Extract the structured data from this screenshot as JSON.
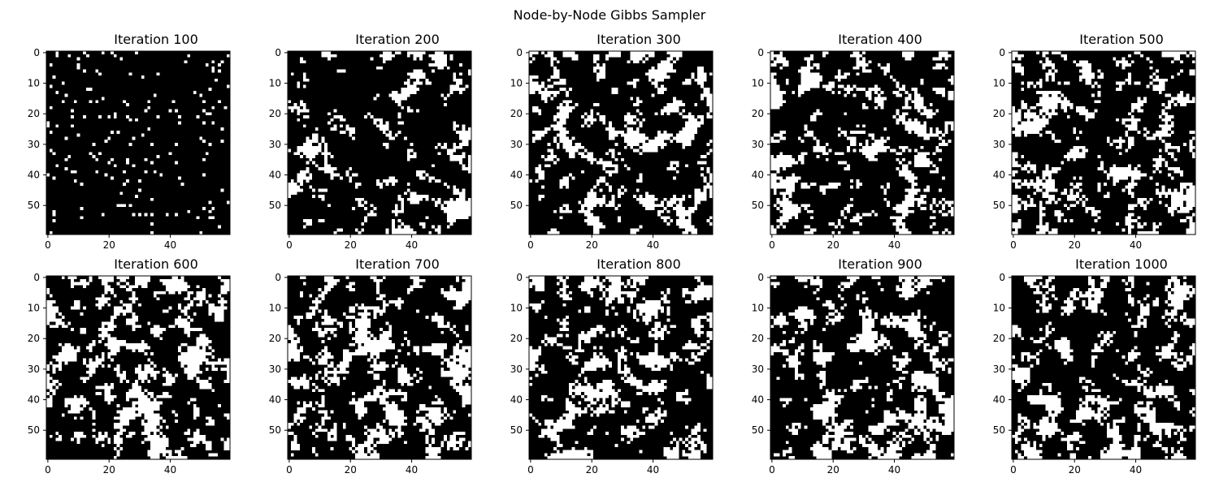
{
  "figure_title": "Node-by-Node Gibbs Sampler",
  "chart_data": {
    "type": "heatmap",
    "title": "Node-by-Node Gibbs Sampler",
    "grid_size": 60,
    "colormap": [
      "#000000",
      "#ffffff"
    ],
    "x_ticks": [
      0,
      20,
      40
    ],
    "y_ticks": [
      0,
      10,
      20,
      30,
      40,
      50
    ],
    "xlim": [
      -0.5,
      59.5
    ],
    "ylim": [
      59.5,
      -0.5
    ],
    "panels": [
      {
        "title": "Iteration 100",
        "iteration": 100,
        "white_fraction": 0.05
      },
      {
        "title": "Iteration 200",
        "iteration": 200,
        "white_fraction": 0.18
      },
      {
        "title": "Iteration 300",
        "iteration": 300,
        "white_fraction": 0.26
      },
      {
        "title": "Iteration 400",
        "iteration": 400,
        "white_fraction": 0.25
      },
      {
        "title": "Iteration 500",
        "iteration": 500,
        "white_fraction": 0.27
      },
      {
        "title": "Iteration 600",
        "iteration": 600,
        "white_fraction": 0.3
      },
      {
        "title": "Iteration 700",
        "iteration": 700,
        "white_fraction": 0.3
      },
      {
        "title": "Iteration 800",
        "iteration": 800,
        "white_fraction": 0.28
      },
      {
        "title": "Iteration 900",
        "iteration": 900,
        "white_fraction": 0.29
      },
      {
        "title": "Iteration 1000",
        "iteration": 1000,
        "white_fraction": 0.27
      }
    ]
  }
}
